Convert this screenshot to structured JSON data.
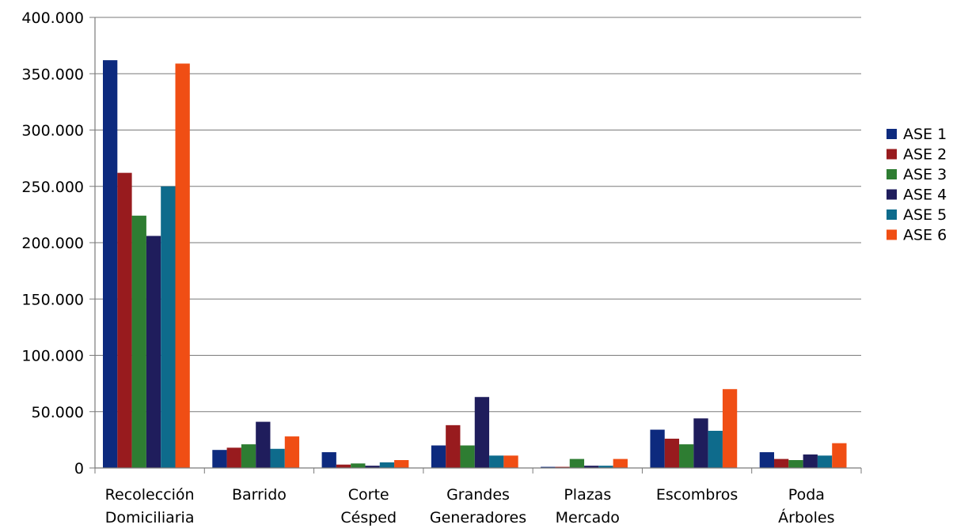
{
  "chart_data": {
    "type": "bar",
    "title": "",
    "xlabel": "",
    "ylabel": "",
    "categories": [
      [
        "Recolección",
        "Domiciliaria"
      ],
      [
        "Barrido"
      ],
      [
        "Corte",
        "Césped"
      ],
      [
        "Grandes",
        "Generadores"
      ],
      [
        "Plazas",
        "Mercado"
      ],
      [
        "Escombros"
      ],
      [
        "Poda",
        "Árboles"
      ]
    ],
    "series": [
      {
        "name": "ASE 1",
        "color": "#0d2a7e",
        "values": [
          362000,
          16000,
          14000,
          20000,
          1000,
          34000,
          14000
        ]
      },
      {
        "name": "ASE 2",
        "color": "#981b1e",
        "values": [
          262000,
          18000,
          3000,
          38000,
          1000,
          26000,
          8000
        ]
      },
      {
        "name": "ASE 3",
        "color": "#2e7d32",
        "values": [
          224000,
          21000,
          4000,
          20000,
          8000,
          21000,
          7000
        ]
      },
      {
        "name": "ASE 4",
        "color": "#1f1d5c",
        "values": [
          206000,
          41000,
          2000,
          63000,
          2000,
          44000,
          12000
        ]
      },
      {
        "name": "ASE 5",
        "color": "#0e6b8c",
        "values": [
          250000,
          17000,
          5000,
          11000,
          2000,
          33000,
          11000
        ]
      },
      {
        "name": "ASE 6",
        "color": "#f04e14",
        "values": [
          359000,
          28000,
          7000,
          11000,
          8000,
          70000,
          22000
        ]
      }
    ],
    "ylim": [
      0,
      400000
    ],
    "yticks": [
      0,
      50000,
      100000,
      150000,
      200000,
      250000,
      300000,
      350000,
      400000
    ],
    "ytick_labels": [
      "0",
      "50.000",
      "100.000",
      "150.000",
      "200.000",
      "250.000",
      "300.000",
      "350.000",
      "400.000"
    ],
    "grid": true,
    "legend_position": "right"
  }
}
